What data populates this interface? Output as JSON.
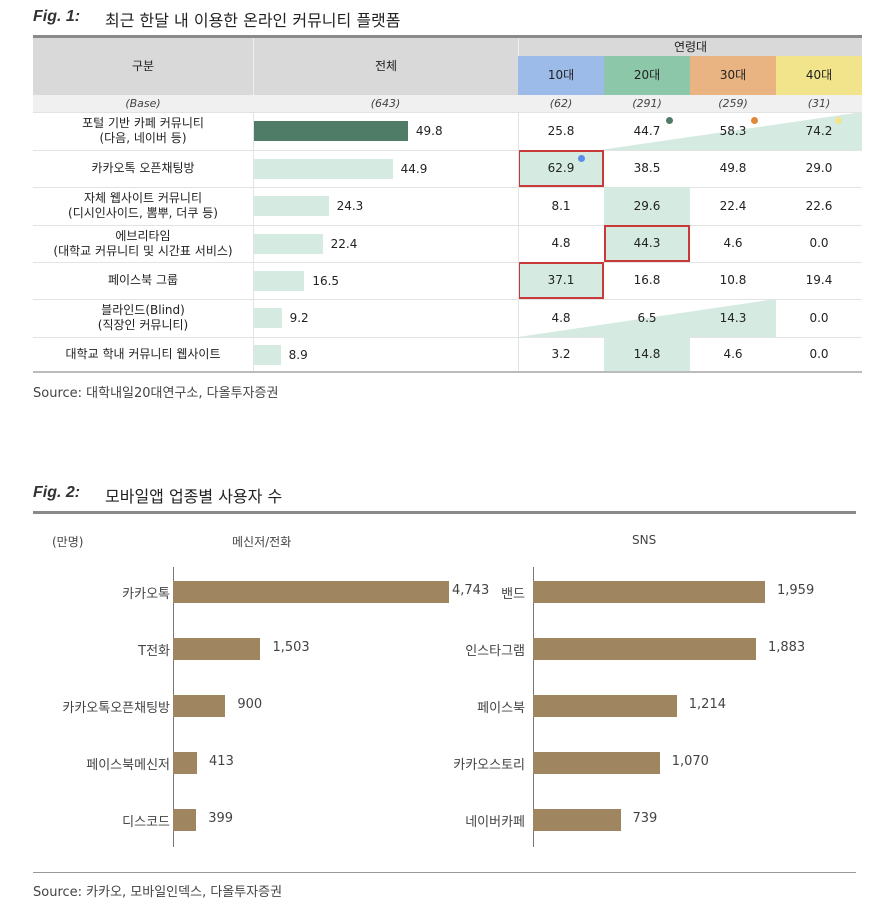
{
  "fig1": {
    "label": "Fig. 1:",
    "title": "최근 한달 내 이용한 온라인 커뮤니티 플랫폼",
    "headers": {
      "category": "구분",
      "total": "전체",
      "age_group": "연령대",
      "ages": [
        "10대",
        "20대",
        "30대",
        "40대"
      ]
    },
    "age_colors": [
      "#9dbbe8",
      "#8cc7a9",
      "#e9b482",
      "#f2e48a"
    ],
    "base": {
      "label": "(Base)",
      "total": "(643)",
      "ages": [
        "(62)",
        "(291)",
        "(259)",
        "(31)"
      ]
    },
    "rows": [
      {
        "label": "포털 기반 카페 커뮤니티\n(다음, 네이버 등)",
        "total": "49.8",
        "ages": [
          "25.8",
          "44.7",
          "58.3",
          "74.2"
        ]
      },
      {
        "label": "카카오톡 오픈채팅방",
        "total": "44.9",
        "ages": [
          "62.9",
          "38.5",
          "49.8",
          "29.0"
        ]
      },
      {
        "label": "자체 웹사이트 커뮤니티\n(디시인사이드, 뽐뿌, 더쿠 등)",
        "total": "24.3",
        "ages": [
          "8.1",
          "29.6",
          "22.4",
          "22.6"
        ]
      },
      {
        "label": "에브리타임\n(대학교 커뮤니티 및 시간표 서비스)",
        "total": "22.4",
        "ages": [
          "4.8",
          "44.3",
          "4.6",
          "0.0"
        ]
      },
      {
        "label": "페이스북 그룹",
        "total": "16.5",
        "ages": [
          "37.1",
          "16.8",
          "10.8",
          "19.4"
        ]
      },
      {
        "label": "블라인드(Blind)\n(직장인 커뮤니티)",
        "total": "9.2",
        "ages": [
          "4.8",
          "6.5",
          "14.3",
          "0.0"
        ]
      },
      {
        "label": "대학교 학내 커뮤니티 웹사이트",
        "total": "8.9",
        "ages": [
          "3.2",
          "14.8",
          "4.6",
          "0.0"
        ]
      }
    ],
    "bar_color_top": "#4e7c66",
    "bar_color": "#d5ebe1",
    "source": "Source: 대학내일20대연구소, 다올투자증권"
  },
  "fig2": {
    "label": "Fig. 2:",
    "title": "모바일앱 업종별 사용자 수",
    "unit": "(만명)",
    "source": "Source: 카카오, 모바일인덱스, 다올투자증권",
    "bar_color": "#a08660"
  },
  "chart_data": [
    {
      "type": "bar",
      "orientation": "horizontal",
      "title": "메신저/전화",
      "categories": [
        "카카오톡",
        "T전화",
        "카카오톡오픈채팅방",
        "페이스북메신저",
        "디스코드"
      ],
      "values": [
        4743,
        1503,
        900,
        413,
        399
      ],
      "value_labels": [
        "4,743",
        "1,503",
        "900",
        "413",
        "399"
      ],
      "unit": "(만명)"
    },
    {
      "type": "bar",
      "orientation": "horizontal",
      "title": "SNS",
      "categories": [
        "밴드",
        "인스타그램",
        "페이스북",
        "카카오스토리",
        "네이버카페"
      ],
      "values": [
        1959,
        1883,
        1214,
        1070,
        739
      ],
      "value_labels": [
        "1,959",
        "1,883",
        "1,214",
        "1,070",
        "739"
      ]
    }
  ]
}
